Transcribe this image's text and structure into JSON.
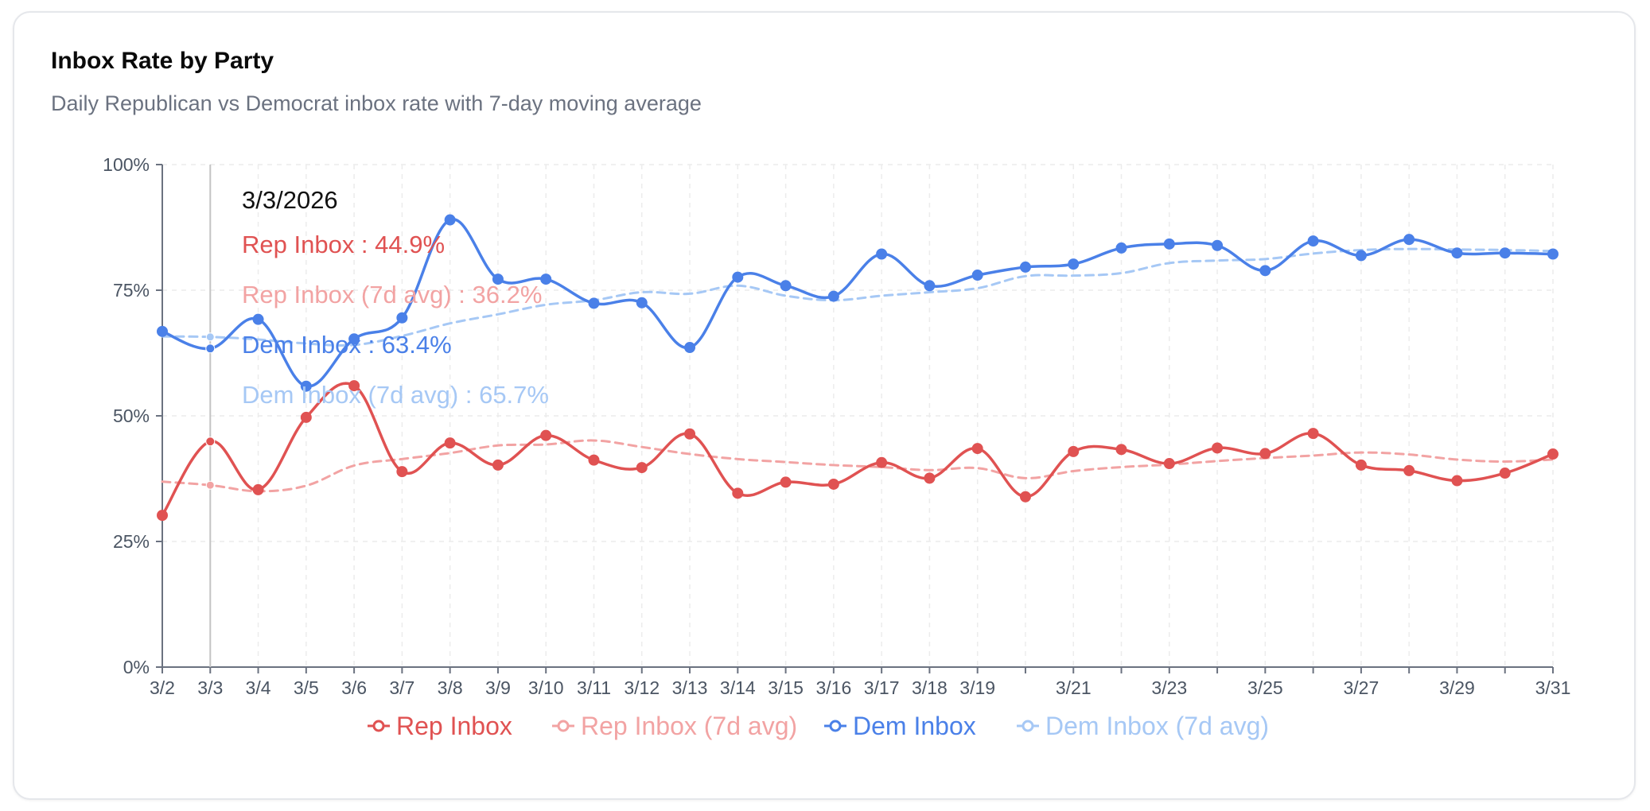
{
  "header": {
    "title": "Inbox Rate by Party",
    "subtitle": "Daily Republican vs Democrat inbox rate with 7-day moving average"
  },
  "colors": {
    "rep": "#e05252",
    "rep_avg": "#f2a3a3",
    "dem": "#4a80e8",
    "dem_avg": "#a6c8f5",
    "axis": "#6b7280",
    "grid": "#ececec"
  },
  "chart_data": {
    "type": "line",
    "title": "Inbox Rate by Party",
    "xlabel": "",
    "ylabel": "",
    "ylim": [
      0,
      100
    ],
    "y_ticks": [
      0,
      25,
      50,
      75,
      100
    ],
    "y_tick_labels": [
      "0%",
      "25%",
      "50%",
      "75%",
      "100%"
    ],
    "x": [
      "3/2",
      "3/3",
      "3/4",
      "3/5",
      "3/6",
      "3/7",
      "3/8",
      "3/9",
      "3/10",
      "3/11",
      "3/12",
      "3/13",
      "3/14",
      "3/15",
      "3/16",
      "3/17",
      "3/18",
      "3/19",
      "3/20",
      "3/21",
      "3/22",
      "3/23",
      "3/24",
      "3/25",
      "3/26",
      "3/27",
      "3/28",
      "3/29",
      "3/30",
      "3/31"
    ],
    "x_tick_labels": [
      "3/2",
      "3/3",
      "3/4",
      "3/5",
      "3/6",
      "3/7",
      "3/8",
      "3/9",
      "3/10",
      "3/11",
      "3/12",
      "3/13",
      "3/14",
      "3/15",
      "3/16",
      "3/17",
      "3/18",
      "3/19",
      "",
      "3/21",
      "",
      "3/23",
      "",
      "3/25",
      "",
      "3/27",
      "",
      "3/29",
      "",
      "3/31"
    ],
    "series": [
      {
        "name": "Rep Inbox",
        "key": "rep",
        "dashed": false,
        "values": [
          30.2,
          44.9,
          35.3,
          49.7,
          56.0,
          38.9,
          44.6,
          40.2,
          46.1,
          41.2,
          39.7,
          46.4,
          34.6,
          36.8,
          36.4,
          40.7,
          37.6,
          43.5,
          33.9,
          42.9,
          43.3,
          40.5,
          43.6,
          42.5,
          46.5,
          40.2,
          39.1,
          37.1,
          38.6,
          42.4
        ]
      },
      {
        "name": "Rep Inbox (7d avg)",
        "key": "rep_avg",
        "dashed": true,
        "values": [
          36.9,
          36.2,
          35.0,
          36.1,
          40.1,
          41.4,
          42.6,
          44.1,
          44.3,
          45.1,
          43.8,
          42.4,
          41.4,
          40.8,
          40.2,
          39.8,
          39.2,
          39.6,
          37.6,
          39.0,
          39.8,
          40.3,
          41.0,
          41.6,
          42.1,
          42.7,
          42.3,
          41.3,
          40.9,
          41.3
        ]
      },
      {
        "name": "Dem Inbox",
        "key": "dem",
        "dashed": false,
        "values": [
          66.8,
          63.4,
          69.2,
          55.9,
          65.3,
          69.5,
          89.0,
          77.2,
          77.2,
          72.4,
          72.5,
          63.6,
          77.6,
          75.9,
          73.8,
          82.2,
          75.9,
          78.0,
          79.6,
          80.2,
          83.4,
          84.2,
          83.9,
          78.9,
          84.8,
          81.9,
          85.1,
          82.4,
          82.4,
          82.2
        ]
      },
      {
        "name": "Dem Inbox (7d avg)",
        "key": "dem_avg",
        "dashed": true,
        "values": [
          65.8,
          65.7,
          65.2,
          64.4,
          64.1,
          65.9,
          68.4,
          70.2,
          72.1,
          73.0,
          74.6,
          74.3,
          75.9,
          73.9,
          73.0,
          73.9,
          74.6,
          75.4,
          77.8,
          77.9,
          78.4,
          80.4,
          80.9,
          81.2,
          82.3,
          83.0,
          83.2,
          83.1,
          83.0,
          82.8
        ]
      }
    ],
    "legend_position": "bottom-center",
    "grid": true
  },
  "tooltip": {
    "date": "3/3/2026",
    "index": 1,
    "rows": [
      {
        "key": "rep",
        "text": "Rep Inbox : 44.9%"
      },
      {
        "key": "rep_avg",
        "text": "Rep Inbox (7d avg) : 36.2%"
      },
      {
        "key": "dem",
        "text": "Dem Inbox : 63.4%"
      },
      {
        "key": "dem_avg",
        "text": "Dem Inbox (7d avg) : 65.7%"
      }
    ]
  }
}
